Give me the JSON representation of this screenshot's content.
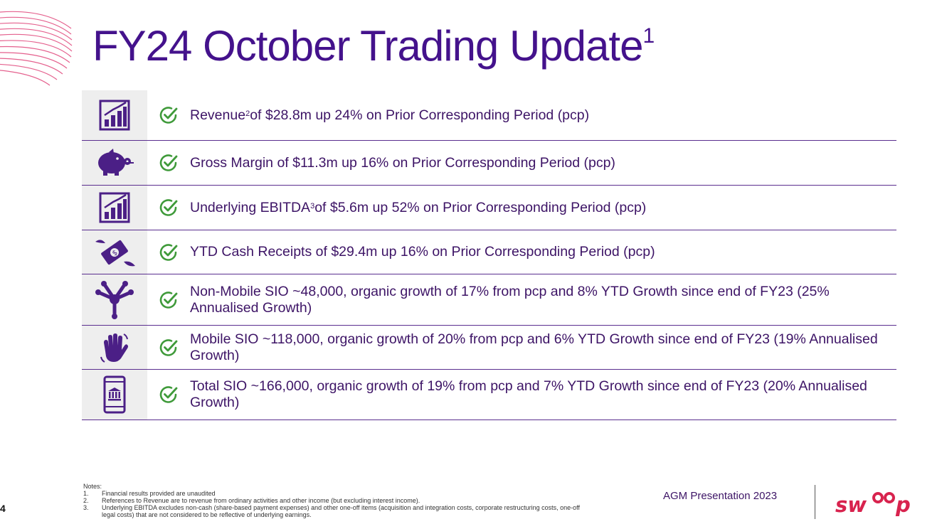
{
  "title": {
    "text": "FY24 October Trading Update",
    "sup": "1"
  },
  "rows": [
    {
      "icon": "bar-chart-icon",
      "parts": [
        "Revenue",
        "2",
        " of $28.8m up 24% on Prior Corresponding Period (pcp)"
      ]
    },
    {
      "icon": "piggy-bank-icon",
      "parts": [
        "Gross Margin of $11.3m  up 16% on Prior Corresponding Period (pcp)",
        "",
        ""
      ]
    },
    {
      "icon": "bar-chart-icon",
      "parts": [
        "Underlying EBITDA",
        "3",
        " of $5.6m up 52% on Prior Corresponding Period (pcp)"
      ]
    },
    {
      "icon": "flying-money-icon",
      "parts": [
        "YTD Cash Receipts of $29.4m up 16% on Prior Corresponding Period (pcp)",
        "",
        ""
      ]
    },
    {
      "icon": "hands-together-icon",
      "parts": [
        "Non-Mobile SIO ~48,000, organic growth of 17% from pcp and 8% YTD Growth since end of FY23 (25% Annualised Growth)",
        "",
        ""
      ]
    },
    {
      "icon": "waving-hand-icon",
      "parts": [
        "Mobile SIO ~118,000, organic growth of 20% from pcp and 6% YTD Growth since end of FY23 (19% Annualised Growth)",
        "",
        ""
      ]
    },
    {
      "icon": "mobile-bank-icon",
      "parts": [
        "Total SIO ~166,000, organic growth of 19% from pcp and 7% YTD Growth since end of FY23 (20% Annualised Growth)",
        "",
        ""
      ]
    }
  ],
  "notes": {
    "heading": "Notes:",
    "items": [
      {
        "num": "1.",
        "text": "Financial results provided are unaudited"
      },
      {
        "num": "2.",
        "text": "References to Revenue are to revenue from ordinary activities and other income (but excluding interest income)."
      },
      {
        "num": "3.",
        "text": "Underlying EBITDA excludes non-cash (share-based payment expenses) and other one-off items (acquisition and integration costs, corporate restructuring costs, one-off legal costs) that are not considered to be reflective of underlying earnings."
      }
    ]
  },
  "footer": {
    "page_number": "4",
    "presentation": "AGM Presentation 2023",
    "logo_text": "swoop"
  },
  "colors": {
    "title": "#44128c",
    "check": "#3f9a3a",
    "icon": "#4b1f86",
    "accent": "#d8234e"
  }
}
